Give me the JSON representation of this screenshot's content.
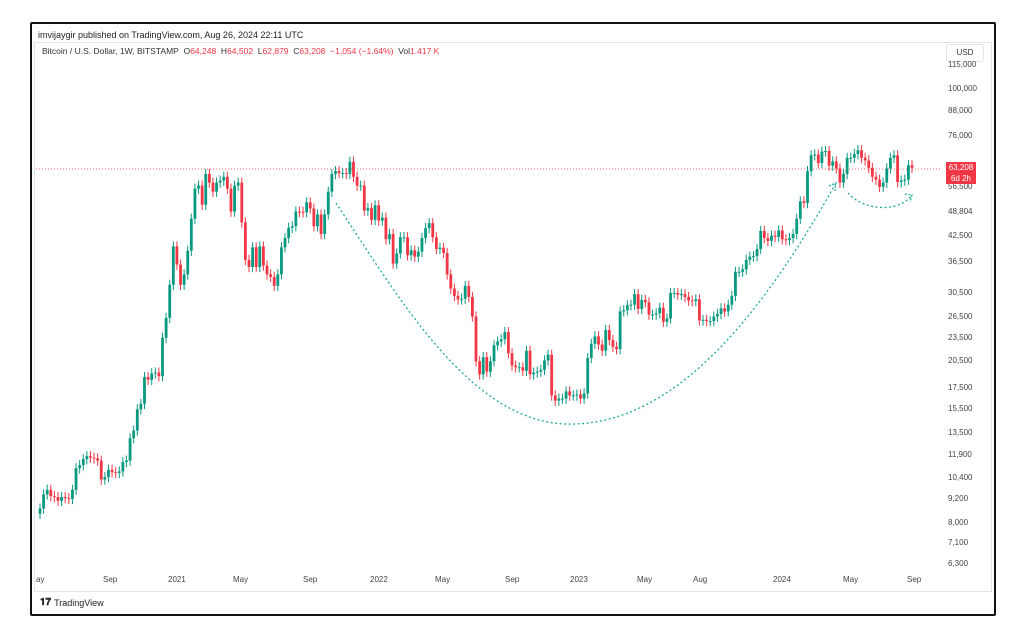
{
  "header": {
    "published": "imvijaygir published on TradingView.com, Aug 26, 2024 22:11 UTC"
  },
  "legend": {
    "symbol": "Bitcoin / U.S. Dollar, 1W, BITSTAMP",
    "o_label": "O",
    "open": "64,248",
    "h_label": "H",
    "high": "64,502",
    "l_label": "L",
    "low": "62,879",
    "c_label": "C",
    "close": "63,208",
    "change": "−1,054 (−1.64%)",
    "vol_label": "Vol",
    "volume": "1.417 K"
  },
  "currency_button": "USD",
  "price_tag": {
    "price": "63,208",
    "countdown": "6d 2h"
  },
  "footer": {
    "brand": "TradingView"
  },
  "colors": {
    "up": "#089981",
    "down": "#f23645",
    "annotation": "#22ab94"
  },
  "chart_data": {
    "type": "candlestick",
    "y_scale": "log",
    "y_ticks": [
      "115,000",
      "100,000",
      "88,000",
      "76,000",
      "56,500",
      "48,804",
      "42,500",
      "36,500",
      "30,500",
      "26,500",
      "23,500",
      "20,500",
      "17,500",
      "15,500",
      "13,500",
      "11,900",
      "10,400",
      "9,200",
      "8,000",
      "7,100",
      "6,300"
    ],
    "x_ticks": [
      "ay",
      "Sep",
      "2021",
      "May",
      "Sep",
      "2022",
      "May",
      "Sep",
      "2023",
      "May",
      "Aug",
      "2024",
      "May",
      "Sep"
    ],
    "last_price": 63208,
    "start": "2020-05-18",
    "end": "2024-08-26",
    "weekly_closes": [
      8700,
      9450,
      9700,
      9350,
      9300,
      9100,
      9300,
      9250,
      9200,
      9700,
      11000,
      11200,
      11600,
      11800,
      11700,
      11650,
      11500,
      10300,
      10450,
      10900,
      10750,
      10700,
      10800,
      11400,
      11500,
      13100,
      13700,
      15500,
      16000,
      18700,
      18400,
      19100,
      19200,
      18800,
      23500,
      26400,
      32000,
      40000,
      36000,
      32000,
      34000,
      39000,
      47000,
      56000,
      57000,
      51000,
      61000,
      58000,
      55000,
      58000,
      58700,
      60000,
      56000,
      49000,
      57000,
      58000,
      46000,
      37000,
      35500,
      39800,
      35500,
      40000,
      35800,
      34000,
      33500,
      31800,
      34000,
      39800,
      42000,
      44600,
      45000,
      49000,
      48900,
      48800,
      51700,
      49900,
      45000,
      48200,
      43000,
      48200,
      55000,
      61000,
      62000,
      61300,
      61300,
      61000,
      65500,
      60000,
      57000,
      57000,
      49300,
      50000,
      46700,
      50800,
      46500,
      47300,
      41700,
      43000,
      36200,
      38400,
      42200,
      42200,
      38000,
      39100,
      37700,
      38800,
      42000,
      44500,
      45800,
      42200,
      39400,
      39700,
      38500,
      34000,
      31300,
      30000,
      29400,
      29500,
      31800,
      29800,
      26600,
      20500,
      19000,
      21000,
      19300,
      20500,
      22500,
      23000,
      23300,
      24300,
      21500,
      20000,
      19800,
      19800,
      19400,
      21800,
      19000,
      19200,
      19300,
      19500,
      20600,
      21300,
      16800,
      16300,
      16500,
      16500,
      17200,
      16800,
      16800,
      16900,
      16500,
      17000,
      20900,
      22700,
      23700,
      22600,
      21800,
      24600,
      23200,
      22300,
      22000,
      27400,
      27600,
      28400,
      28500,
      30300,
      27800,
      29300,
      28900,
      26900,
      26900,
      27100,
      28000,
      25800,
      26300,
      30500,
      30500,
      30200,
      30300,
      29800,
      29200,
      29100,
      29400,
      26000,
      26100,
      25900,
      25900,
      26600,
      27000,
      27900,
      27400,
      28500,
      30000,
      34500,
      34500,
      35000,
      37000,
      37700,
      37800,
      39400,
      43800,
      42000,
      41300,
      42600,
      42300,
      43900,
      41700,
      41500,
      42000,
      43000,
      47000,
      52000,
      51500,
      62000,
      68000,
      68300,
      65000,
      69500,
      69700,
      64000,
      65600,
      63000,
      58000,
      61000,
      67000,
      67000,
      68500,
      70000,
      67000,
      66000,
      63200,
      60000,
      59000,
      56600,
      58000,
      63000,
      67000,
      68000,
      58200,
      58700,
      59000,
      64200,
      63208
    ]
  }
}
